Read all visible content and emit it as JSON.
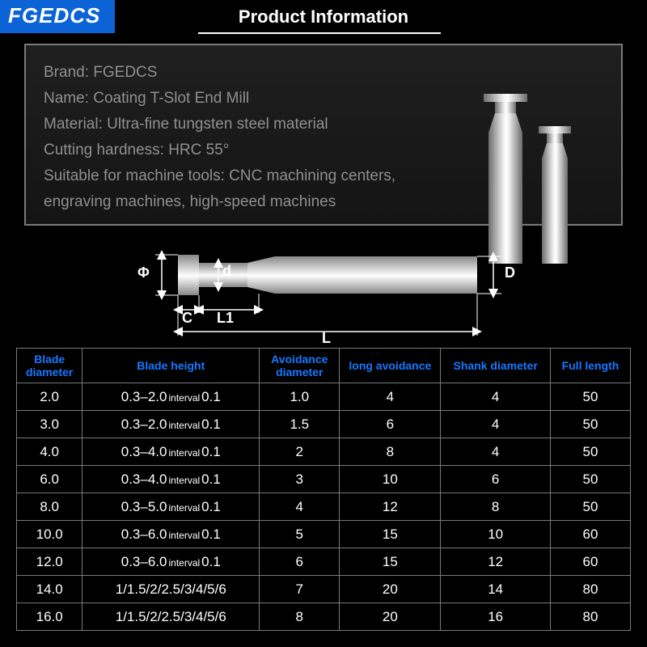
{
  "brand_badge": "FGEDCS",
  "title": "Product Information",
  "info": {
    "lines": [
      "Brand: FGEDCS",
      "Name: Coating T-Slot End Mill",
      "Material: Ultra-fine tungsten steel material",
      "Cutting hardness: HRC 55°",
      "Suitable for machine tools: CNC machining centers,",
      "engraving machines, high-speed machines"
    ],
    "text_color": "#8f8f8f",
    "border_color": "#7a7a7a"
  },
  "diagram": {
    "labels": {
      "phi": "Φ",
      "d_small": "d",
      "C": "C",
      "L1": "L1",
      "L": "L",
      "D": "D"
    },
    "line_color": "#ffffff"
  },
  "table": {
    "header_color": "#1678ff",
    "border_color": "#7a7a7a",
    "columns": [
      "Blade diameter",
      "Blade height",
      "Avoidance diameter",
      "long avoidance",
      "Shank diameter",
      "Full length"
    ],
    "interval_word": "interval",
    "rows": [
      {
        "bd": "2.0",
        "bh_a": "0.3–2.0",
        "bh_b": "0.1",
        "ad": "1.0",
        "la": "4",
        "sd": "4",
        "fl": "50"
      },
      {
        "bd": "3.0",
        "bh_a": "0.3–2.0",
        "bh_b": "0.1",
        "ad": "1.5",
        "la": "6",
        "sd": "4",
        "fl": "50"
      },
      {
        "bd": "4.0",
        "bh_a": "0.3–4.0",
        "bh_b": "0.1",
        "ad": "2",
        "la": "8",
        "sd": "4",
        "fl": "50"
      },
      {
        "bd": "6.0",
        "bh_a": "0.3–4.0",
        "bh_b": "0.1",
        "ad": "3",
        "la": "10",
        "sd": "6",
        "fl": "50"
      },
      {
        "bd": "8.0",
        "bh_a": "0.3–5.0",
        "bh_b": "0.1",
        "ad": "4",
        "la": "12",
        "sd": "8",
        "fl": "50"
      },
      {
        "bd": "10.0",
        "bh_a": "0.3–6.0",
        "bh_b": "0.1",
        "ad": "5",
        "la": "15",
        "sd": "10",
        "fl": "60"
      },
      {
        "bd": "12.0",
        "bh_a": "0.3–6.0",
        "bh_b": "0.1",
        "ad": "6",
        "la": "15",
        "sd": "12",
        "fl": "60"
      },
      {
        "bd": "14.0",
        "bh_plain": "1/1.5/2/2.5/3/4/5/6",
        "ad": "7",
        "la": "20",
        "sd": "14",
        "fl": "80"
      },
      {
        "bd": "16.0",
        "bh_plain": "1/1.5/2/2.5/3/4/5/6",
        "ad": "8",
        "la": "20",
        "sd": "16",
        "fl": "80"
      }
    ]
  },
  "colors": {
    "background": "#000000",
    "accent_blue": "#0b63d6",
    "header_blue": "#1678ff",
    "grey_text": "#8f8f8f"
  }
}
